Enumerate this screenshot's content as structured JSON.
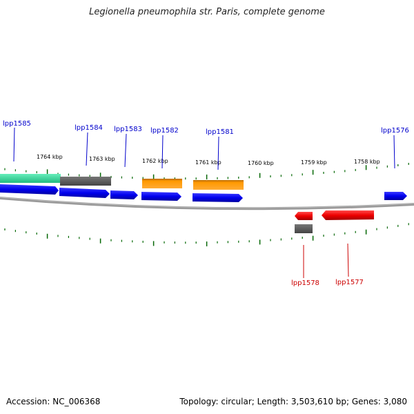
{
  "title": "Legionella pneumophila str. Paris, complete genome",
  "footer": {
    "accession": "Accession: NC_006368",
    "summary": "Topology: circular; Length: 3,503,610 bp; Genes: 3,080"
  },
  "kbp_labels": [
    "1764 kbp",
    "1763 kbp",
    "1762 kbp",
    "1761 kbp",
    "1760 kbp",
    "1759 kbp",
    "1758 kbp"
  ],
  "gene_labels_forward": [
    "lpp1585",
    "lpp1584",
    "lpp1583",
    "lpp1582",
    "lpp1581",
    "lpp1576"
  ],
  "gene_labels_reverse": [
    "lpp1578",
    "lpp1577"
  ],
  "colors": {
    "forward_label": "#0000cc",
    "reverse_label": "#cc0000",
    "cds_blue": "#0000ee",
    "cds_red": "#ee0000",
    "green_feature": "#33dd99",
    "gray_feature": "#666666",
    "orange_feature": "#ff9900",
    "tick": "#006600",
    "backbone": "#888888"
  },
  "icons": [
    "forward-arrow-icon",
    "reverse-arrow-icon"
  ]
}
